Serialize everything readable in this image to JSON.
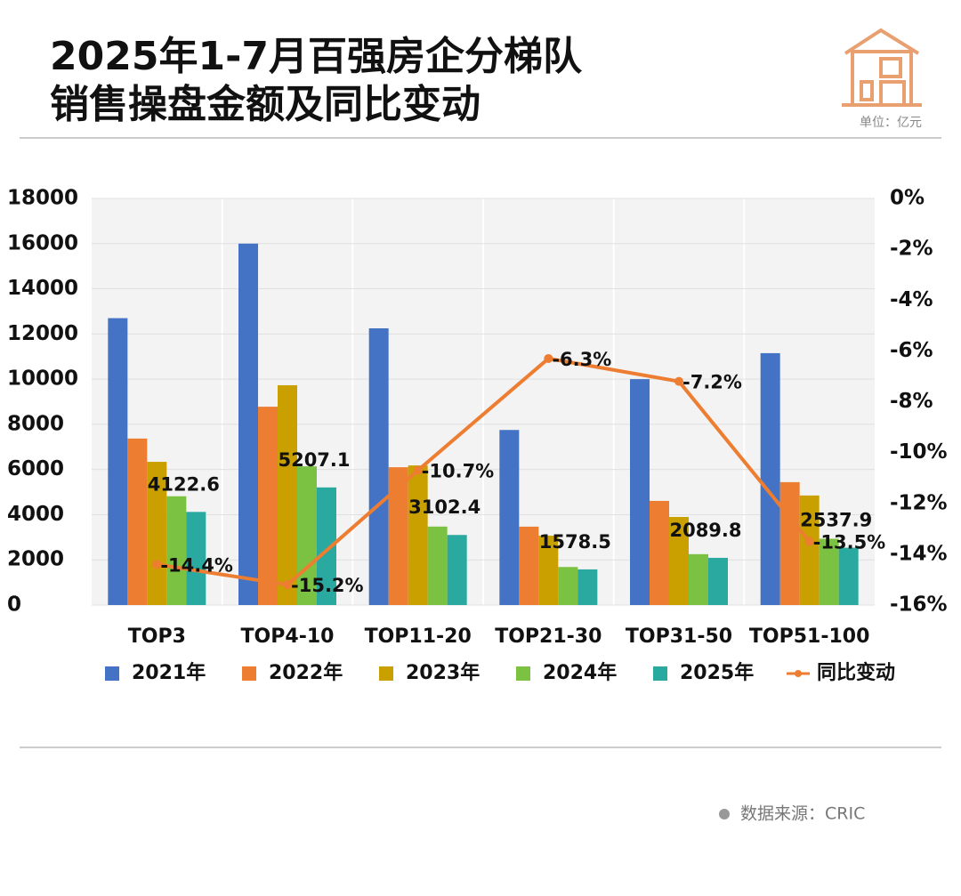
{
  "chart_data": {
    "type": "bar",
    "title": "2025年1-7月百强房企分梯队",
    "subtitle": "销售操盘金额及同比变动",
    "unit": "单位：亿元",
    "source": "数据来源：CRIC",
    "categories": [
      "TOP3",
      "TOP4-10",
      "TOP11-20",
      "TOP21-30",
      "TOP31-50",
      "TOP51-100"
    ],
    "series": [
      {
        "name": "2021年",
        "color": "#4472c4",
        "values": [
          12700,
          16000,
          12250,
          7750,
          10000,
          11150
        ]
      },
      {
        "name": "2022年",
        "color": "#ed7d31",
        "values": [
          7370,
          8780,
          6100,
          3470,
          4610,
          5440
        ]
      },
      {
        "name": "2023年",
        "color": "#c9a000",
        "values": [
          6340,
          9730,
          6180,
          3070,
          3900,
          4850
        ]
      },
      {
        "name": "2024年",
        "color": "#7cc242",
        "values": [
          4816,
          6140,
          3474,
          1685,
          2252,
          2934
        ]
      },
      {
        "name": "2025年",
        "color": "#2aa9a0",
        "values": [
          4122.6,
          5207.1,
          3102.4,
          1578.5,
          2089.8,
          2537.9
        ],
        "show_labels": true
      },
      {
        "name": "同比变动",
        "color": "#ed7d31",
        "type": "line",
        "axis": "y2",
        "values": [
          -14.4,
          -15.2,
          -10.7,
          -6.3,
          -7.2,
          -13.5
        ],
        "value_labels": [
          "-14.4%",
          "-15.2%",
          "-10.7%",
          "-6.3%",
          "-7.2%",
          "-13.5%"
        ]
      }
    ],
    "ylim": [
      0,
      18000
    ],
    "yticks": [
      0,
      2000,
      4000,
      6000,
      8000,
      10000,
      12000,
      14000,
      16000,
      18000
    ],
    "y2lim": [
      -16,
      0
    ],
    "y2ticks": [
      {
        "value": -16,
        "label": "-16%"
      },
      {
        "value": -14,
        "label": "-14%"
      },
      {
        "value": -12,
        "label": "-12%"
      },
      {
        "value": -10,
        "label": "-10%"
      },
      {
        "value": -8,
        "label": "-8%"
      },
      {
        "value": -6,
        "label": "-6%"
      },
      {
        "value": -4,
        "label": "-4%"
      },
      {
        "value": -2,
        "label": "-2%"
      },
      {
        "value": 0,
        "label": "0%"
      }
    ],
    "grid": true
  }
}
